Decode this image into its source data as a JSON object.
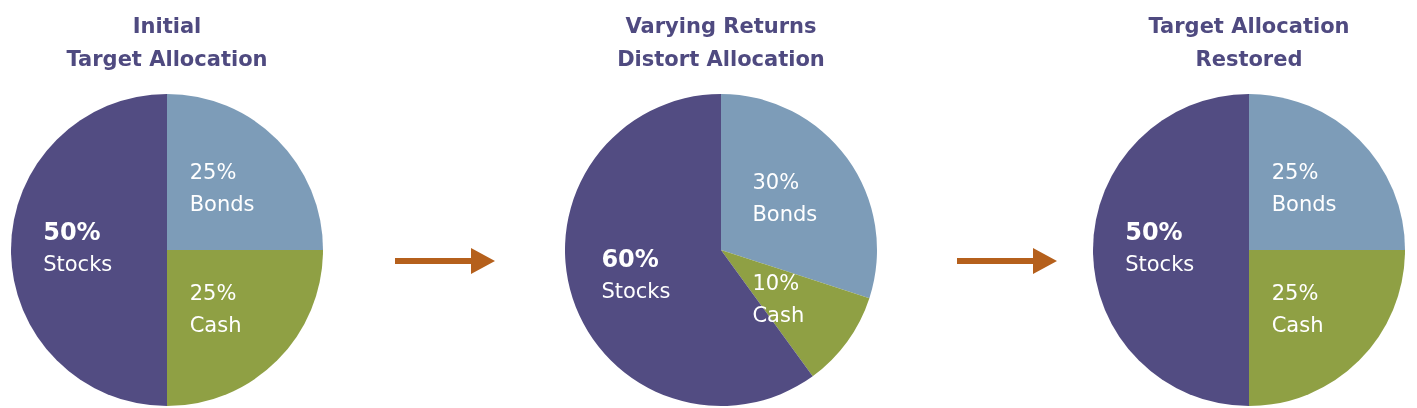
{
  "chart_data": [
    {
      "type": "pie",
      "title": "Initial\nTarget Allocation",
      "categories": [
        "Bonds",
        "Cash",
        "Stocks"
      ],
      "values": [
        25,
        25,
        50
      ],
      "colors": [
        "#7d9cb8",
        "#8fa044",
        "#524c82"
      ],
      "value_labels": [
        "25%",
        "25%",
        "50%"
      ],
      "legend": false
    },
    {
      "type": "pie",
      "title": "Varying Returns\nDistort Allocation",
      "categories": [
        "Bonds",
        "Cash",
        "Stocks"
      ],
      "values": [
        30,
        10,
        60
      ],
      "colors": [
        "#7d9cb8",
        "#8fa044",
        "#524c82"
      ],
      "value_labels": [
        "30%",
        "10%",
        "60%"
      ],
      "legend": false
    },
    {
      "type": "pie",
      "title": "Target Allocation\nRestored",
      "categories": [
        "Bonds",
        "Cash",
        "Stocks"
      ],
      "values": [
        25,
        25,
        50
      ],
      "colors": [
        "#7d9cb8",
        "#8fa044",
        "#524c82"
      ],
      "value_labels": [
        "25%",
        "25%",
        "50%"
      ],
      "legend": false
    }
  ]
}
